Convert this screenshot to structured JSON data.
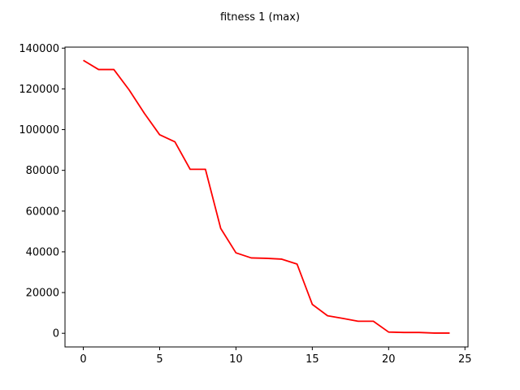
{
  "chart_data": {
    "type": "line",
    "title": "fitness 1 (max)",
    "xlabel": "",
    "ylabel": "",
    "xlim": [
      -1.2,
      25.2
    ],
    "ylim": [
      -6700,
      140500
    ],
    "x_ticks": [
      0,
      5,
      10,
      15,
      20,
      25
    ],
    "y_ticks": [
      0,
      20000,
      40000,
      60000,
      80000,
      100000,
      120000,
      140000
    ],
    "grid": false,
    "series": [
      {
        "color": "#ff0000",
        "x": [
          0,
          1,
          2,
          3,
          4,
          5,
          6,
          7,
          8,
          9,
          10,
          11,
          12,
          13,
          14,
          15,
          16,
          17,
          18,
          19,
          20,
          21,
          22,
          23,
          24
        ],
        "values": [
          134000,
          129500,
          129500,
          119500,
          108000,
          97500,
          94000,
          80500,
          80500,
          51500,
          39500,
          37000,
          36800,
          36400,
          34000,
          14200,
          8600,
          7300,
          5900,
          5900,
          600,
          400,
          400,
          100,
          100
        ]
      }
    ]
  }
}
